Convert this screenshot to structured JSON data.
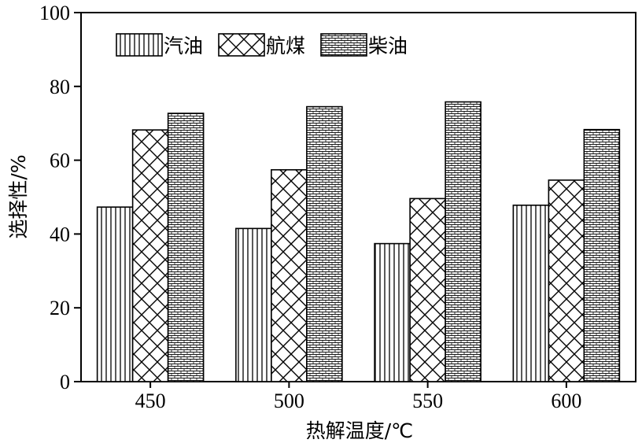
{
  "chart_data": {
    "type": "bar",
    "categories": [
      "450",
      "500",
      "550",
      "600"
    ],
    "series": [
      {
        "name": "汽油",
        "pattern": "vertical-lines",
        "values": [
          47.3,
          41.5,
          37.4,
          47.8
        ]
      },
      {
        "name": "航煤",
        "pattern": "crosshatch",
        "values": [
          68.2,
          57.4,
          49.6,
          54.6
        ]
      },
      {
        "name": "柴油",
        "pattern": "brick",
        "values": [
          72.7,
          74.5,
          75.8,
          68.3
        ]
      }
    ],
    "xlabel": "热解温度/℃",
    "ylabel": "选择性/%",
    "ylim": [
      0,
      100
    ],
    "yticks": [
      0,
      20,
      40,
      60,
      80,
      100
    ],
    "grid": false,
    "legend_position": "top-left",
    "colors": {
      "stroke": "#000000",
      "fill": "#ffffff"
    }
  }
}
